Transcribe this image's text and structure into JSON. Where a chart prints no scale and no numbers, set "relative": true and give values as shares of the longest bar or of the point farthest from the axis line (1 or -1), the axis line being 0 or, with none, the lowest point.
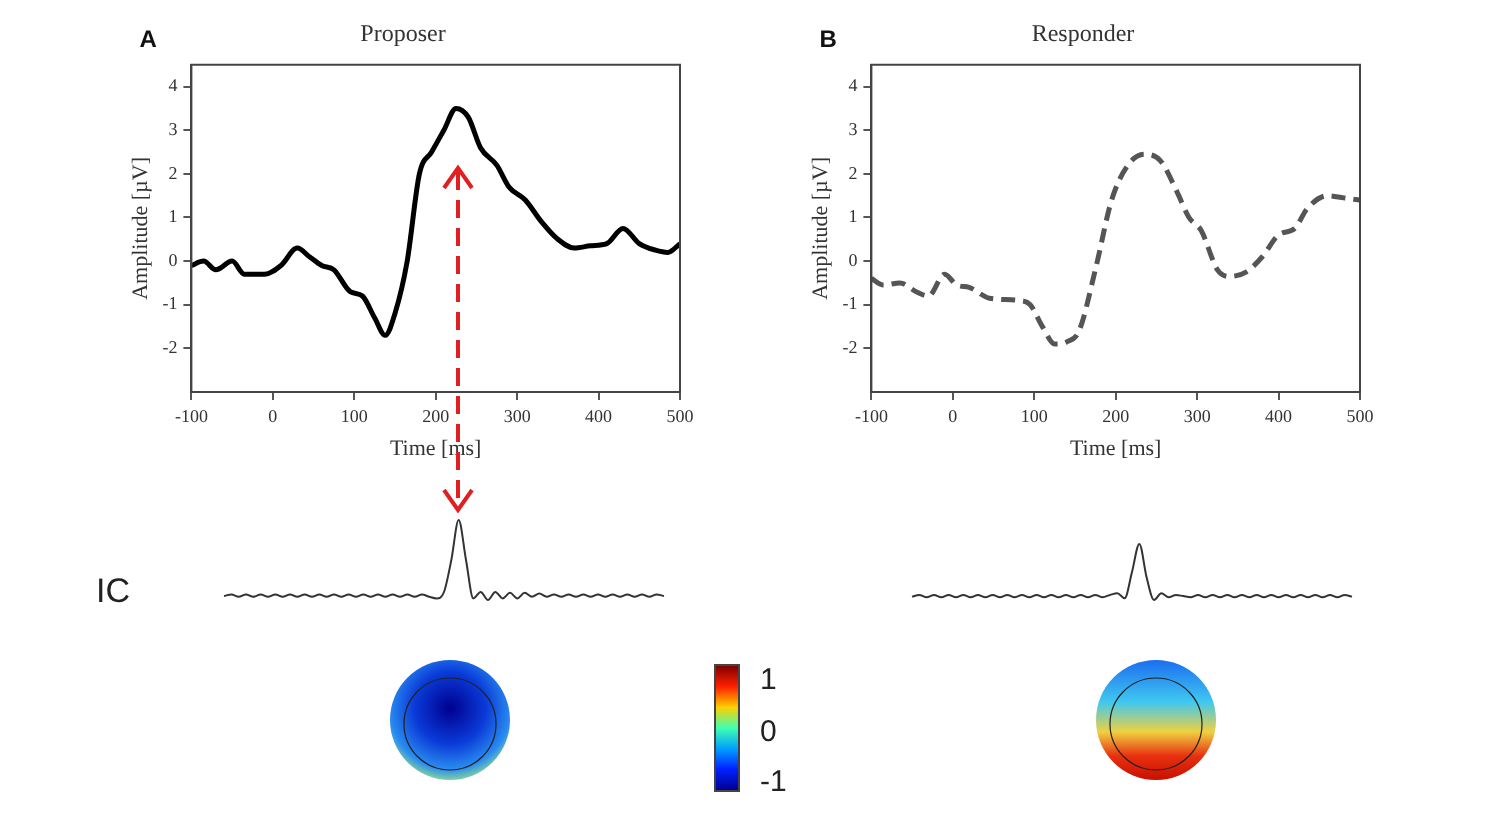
{
  "chart_data": [
    {
      "type": "line",
      "title": "Proposer",
      "xlabel": "Time [ms]",
      "ylabel": "Amplitude [µV]",
      "annotations": [
        "A"
      ],
      "x": [
        -100,
        -85,
        -70,
        -50,
        -35,
        -10,
        10,
        30,
        45,
        60,
        75,
        95,
        110,
        125,
        138,
        150,
        165,
        180,
        195,
        210,
        225,
        240,
        255,
        275,
        290,
        310,
        330,
        350,
        370,
        390,
        410,
        430,
        450,
        470,
        485,
        500
      ],
      "series": [
        {
          "color": "#000000",
          "line_style": "solid",
          "values": [
            -0.1,
            0.0,
            -0.2,
            0.0,
            -0.3,
            -0.3,
            -0.1,
            0.3,
            0.1,
            -0.1,
            -0.2,
            -0.7,
            -0.8,
            -1.3,
            -1.7,
            -1.2,
            0.0,
            2.0,
            2.5,
            3.0,
            3.5,
            3.3,
            2.6,
            2.2,
            1.7,
            1.4,
            0.9,
            0.5,
            0.3,
            0.35,
            0.4,
            0.75,
            0.4,
            0.25,
            0.2,
            0.4
          ]
        }
      ],
      "xlim": [
        -100,
        500
      ],
      "xticks": [
        -100,
        0,
        100,
        200,
        300,
        400,
        500
      ],
      "ylim": [
        -3,
        4.5
      ],
      "yticks": [
        -2,
        -1,
        0,
        1,
        2,
        3,
        4
      ],
      "grid": false,
      "legend": false,
      "marker": "none"
    },
    {
      "type": "line",
      "title": "Responder",
      "xlabel": "Time [ms]",
      "ylabel": "Amplitude [µV]",
      "annotations": [
        "B"
      ],
      "x": [
        -100,
        -85,
        -65,
        -45,
        -30,
        -10,
        5,
        20,
        45,
        80,
        95,
        110,
        125,
        140,
        155,
        175,
        195,
        215,
        235,
        255,
        275,
        290,
        305,
        325,
        340,
        360,
        380,
        400,
        420,
        435,
        460,
        480,
        500
      ],
      "series": [
        {
          "color": "#555555",
          "line_style": "dashed",
          "values": [
            -0.4,
            -0.55,
            -0.5,
            -0.7,
            -0.8,
            -0.3,
            -0.55,
            -0.6,
            -0.85,
            -0.9,
            -1.0,
            -1.5,
            -1.9,
            -1.85,
            -1.6,
            -0.2,
            1.4,
            2.2,
            2.45,
            2.3,
            1.6,
            1.0,
            0.7,
            -0.2,
            -0.35,
            -0.25,
            0.1,
            0.6,
            0.75,
            1.2,
            1.5,
            1.45,
            1.4
          ]
        }
      ],
      "xlim": [
        -100,
        500
      ],
      "xticks": [
        -100,
        0,
        100,
        200,
        300,
        400,
        500
      ],
      "ylim": [
        -3,
        4.5
      ],
      "yticks": [
        -2,
        -1,
        0,
        1,
        2,
        3,
        4
      ],
      "grid": false,
      "legend": false,
      "marker": "none"
    },
    {
      "type": "line",
      "relative": true,
      "categories": [
        null,
        null,
        null,
        null,
        null,
        null,
        null,
        null,
        null,
        null,
        null,
        null,
        null,
        null,
        null,
        null,
        null,
        null,
        null,
        null,
        null,
        null,
        null,
        null,
        null,
        null,
        null,
        null,
        null,
        null,
        null,
        null,
        null,
        null,
        null,
        null,
        null,
        null,
        null,
        null,
        null,
        null,
        null,
        null,
        null,
        null,
        null,
        null,
        null,
        null,
        null,
        null,
        null,
        null,
        null,
        null,
        null,
        null,
        null,
        null,
        null
      ],
      "series": [
        {
          "color": "#333333",
          "values": [
            0.05,
            0.07,
            0.04,
            0.07,
            0.04,
            0.07,
            0.04,
            0.07,
            0.04,
            0.07,
            0.04,
            0.07,
            0.04,
            0.07,
            0.04,
            0.07,
            0.04,
            0.07,
            0.04,
            0.07,
            0.04,
            0.07,
            0.04,
            0.07,
            0.04,
            0.07,
            0.04,
            0.07,
            0.04,
            0.02,
            0.1,
            0.5,
            1.0,
            0.5,
            0.02,
            0.1,
            0.0,
            0.1,
            0.02,
            0.09,
            0.02,
            0.09,
            0.04,
            0.08,
            0.04,
            0.07,
            0.04,
            0.07,
            0.04,
            0.07,
            0.04,
            0.07,
            0.04,
            0.07,
            0.04,
            0.07,
            0.04,
            0.07,
            0.04,
            0.07,
            0.05
          ]
        }
      ],
      "legend": false,
      "marker": "none"
    },
    {
      "type": "line",
      "relative": true,
      "categories": [
        null,
        null,
        null,
        null,
        null,
        null,
        null,
        null,
        null,
        null,
        null,
        null,
        null,
        null,
        null,
        null,
        null,
        null,
        null,
        null,
        null,
        null,
        null,
        null,
        null,
        null,
        null,
        null,
        null,
        null,
        null,
        null,
        null,
        null,
        null,
        null,
        null,
        null,
        null,
        null,
        null,
        null,
        null,
        null,
        null,
        null,
        null,
        null,
        null,
        null,
        null,
        null,
        null,
        null,
        null,
        null,
        null,
        null,
        null,
        null,
        null
      ],
      "series": [
        {
          "color": "#333333",
          "values": [
            0.06,
            0.09,
            0.05,
            0.09,
            0.05,
            0.09,
            0.05,
            0.09,
            0.05,
            0.09,
            0.05,
            0.09,
            0.05,
            0.09,
            0.05,
            0.09,
            0.05,
            0.09,
            0.05,
            0.09,
            0.05,
            0.09,
            0.05,
            0.09,
            0.05,
            0.09,
            0.05,
            0.09,
            0.12,
            0.03,
            0.5,
            1.0,
            0.4,
            0.0,
            0.12,
            0.05,
            0.09,
            0.07,
            0.05,
            0.09,
            0.05,
            0.09,
            0.05,
            0.09,
            0.05,
            0.09,
            0.05,
            0.09,
            0.05,
            0.09,
            0.05,
            0.09,
            0.05,
            0.09,
            0.05,
            0.09,
            0.05,
            0.09,
            0.05,
            0.09,
            0.06
          ]
        }
      ],
      "legend": false,
      "marker": "none"
    },
    {
      "type": "other",
      "annotations": [
        "IC",
        "1",
        "0",
        "-1"
      ]
    }
  ]
}
